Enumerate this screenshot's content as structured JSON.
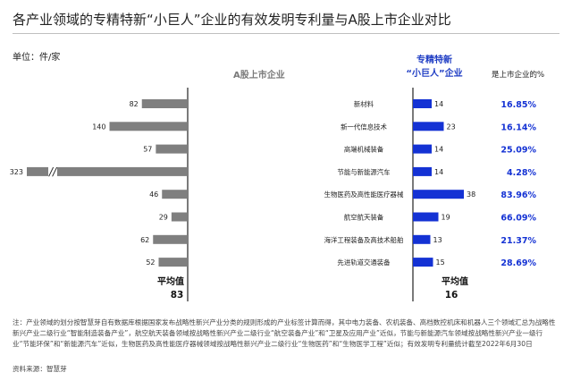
{
  "title": "各产业领域的专精特新“小巨人”企业的有效发明专利量与A股上市企业对比",
  "unit_label": "单位：件/家",
  "col_headers": {
    "a_share": "A股上市企业",
    "sme_line1": "专精特新",
    "sme_line2": "“小巨人”企业",
    "ratio": "是上市企业的%"
  },
  "chart_data": {
    "type": "bar",
    "categories": [
      "新材料",
      "新一代信息技术",
      "高端机械装备",
      "节能与新能源汽车",
      "生物医药及高性能医疗器械",
      "航空航天装备",
      "海洋工程装备及高技术船舶",
      "先进轨道交通装备"
    ],
    "series": [
      {
        "name": "A股上市企业",
        "values": [
          82,
          140,
          57,
          323,
          46,
          29,
          62,
          52
        ],
        "color": "#7f7f7f"
      },
      {
        "name": "专精特新“小巨人”企业",
        "values": [
          14,
          23,
          14,
          14,
          38,
          19,
          13,
          15
        ],
        "color": "#1432d4"
      }
    ],
    "ratio_labels": [
      "16.85%",
      "16.14%",
      "25.09%",
      "4.28%",
      "83.96%",
      "66.09%",
      "21.37%",
      "28.69%"
    ],
    "ratio_color": "#1432d4",
    "axis_break_category": "节能与新能源汽车",
    "axis_break_symbol": "//",
    "averages": {
      "label": "平均值",
      "a_share": "83",
      "sme": "16"
    }
  },
  "footnote": "注：产业领域的划分按智慧芽自有数据库根据国家发布战略性新兴产业分类的规则形成的产业标签计算而得，其中电力装备、农机装备、高档数控机床和机器人三个领域汇总为战略性新兴产业二级行业“智能制造装备产业”，航空航天装备领域按战略性新兴产业二级行业“航空装备产业”和“卫星及应用产业”近似，节能与新能源汽车领域按战略性新兴产业一级行业“节能环保”和“新能源汽车”近似，生物医药及高性能医疗器械领域按战略性新兴产业二级行业“生物医药”和“生物医学工程”近似；有效发明专利量统计截至2022年6月30日",
  "source": "资料来源：智慧芽"
}
